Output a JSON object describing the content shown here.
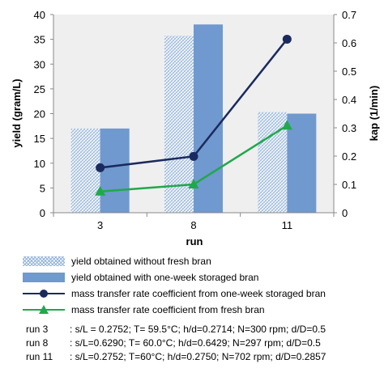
{
  "chart_data": {
    "type": "bar",
    "categories": [
      "3",
      "8",
      "11"
    ],
    "xlabel": "run",
    "ylabel": "yield (gram/L)",
    "y2label": "kap (1/min)",
    "ylim": [
      0,
      40
    ],
    "y2lim": [
      0,
      0.7
    ],
    "yticks": [
      "0",
      "5",
      "10",
      "15",
      "20",
      "25",
      "30",
      "35",
      "40"
    ],
    "y2ticks": [
      "0",
      "0.1",
      "0.2",
      "0.3",
      "0.4",
      "0.5",
      "0.6",
      "0.7"
    ],
    "grid": false,
    "legend_position": "bottom",
    "series": [
      {
        "name": "yield obtained without fresh bran",
        "kind": "bar",
        "axis": "left",
        "pattern": "hatched",
        "color": "#8fb0d8",
        "values": [
          17,
          35.7,
          20.3
        ]
      },
      {
        "name": "yield obtained with one-week storaged bran",
        "kind": "bar",
        "axis": "left",
        "color": "#6f99cf",
        "values": [
          17,
          38,
          20
        ]
      },
      {
        "name": "mass transfer rate coefficient from one-week storaged bran",
        "kind": "line",
        "axis": "right",
        "marker": "circle",
        "color": "#1b2a5e",
        "values": [
          0.159,
          0.199,
          0.613
        ]
      },
      {
        "name": "mass transfer rate coefficient from fresh bran",
        "kind": "line",
        "axis": "right",
        "marker": "triangle",
        "color": "#21a84a",
        "values": [
          0.075,
          0.1,
          0.308
        ]
      }
    ]
  },
  "notes": [
    {
      "run": "run 3",
      "text": ": s/L = 0.2752; T= 59.5°C; h/d=0.2714; N=300 rpm; d/D=0.5"
    },
    {
      "run": "run 8",
      "text": ": s/L=0.6290; T= 60.0°C; h/d=0.6429; N=297 rpm; d/D=0.5"
    },
    {
      "run": "run 11",
      "text": ": s/L=0.2752; T=60°C; h/d=0.2750; N=702 rpm; d/D=0.2857"
    }
  ]
}
